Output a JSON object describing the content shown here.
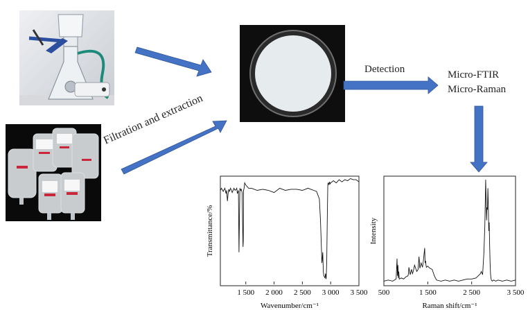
{
  "flow": {
    "filtration_label": "Filtration and extraction",
    "detection_label": "Detection",
    "method_1": "Micro-FTIR",
    "method_2": "Micro-Raman"
  },
  "colors": {
    "arrow": "#4472c4",
    "arrow_edge": "#2f5597",
    "filter_dish": "#e8edf0",
    "filter_bg": "#111111",
    "spectrum_line": "#111111"
  },
  "icons": {
    "filtration_apparatus": "vacuum-filtration-flask-photo",
    "infusion_bags": "iv-infusion-bags-photo",
    "filter_membrane": "filter-membrane-photo"
  },
  "chart_data": [
    {
      "type": "line",
      "title": "",
      "xlabel": "Wavenumber/cm⁻¹",
      "ylabel": "Transmittance/%",
      "xlim": [
        1050,
        3500
      ],
      "xticks": [
        1500,
        2000,
        2500,
        3000,
        3500
      ],
      "xtick_labels": [
        "1 500",
        "2 000",
        "2 500",
        "3 000",
        "3 500"
      ],
      "extra_tick_labels": [
        "1 500"
      ],
      "y_normalized_range": [
        0,
        1
      ],
      "series": [
        {
          "x": [
            1050,
            1070,
            1100,
            1130,
            1150,
            1160,
            1175,
            1190,
            1200,
            1210,
            1230,
            1260,
            1290,
            1310,
            1330,
            1340,
            1350,
            1370,
            1380,
            1395,
            1410,
            1420,
            1435,
            1450,
            1455,
            1460,
            1470,
            1480,
            1500,
            1550,
            1600,
            1700,
            1800,
            1900,
            2000,
            2100,
            2200,
            2300,
            2400,
            2500,
            2600,
            2700,
            2750,
            2800,
            2820,
            2840,
            2845,
            2850,
            2860,
            2870,
            2880,
            2900,
            2910,
            2920,
            2930,
            2940,
            2950,
            2960,
            2970,
            2980,
            2990,
            3000,
            3050,
            3100,
            3150,
            3200,
            3250,
            3300,
            3350,
            3400,
            3450,
            3500
          ],
          "y": [
            0.88,
            0.9,
            0.87,
            0.9,
            0.85,
            0.88,
            0.78,
            0.86,
            0.89,
            0.87,
            0.9,
            0.86,
            0.9,
            0.88,
            0.89,
            0.9,
            0.85,
            0.88,
            0.3,
            0.9,
            0.88,
            0.89,
            0.86,
            0.35,
            0.4,
            0.88,
            0.9,
            0.95,
            0.93,
            0.9,
            0.9,
            0.88,
            0.89,
            0.88,
            0.86,
            0.9,
            0.88,
            0.89,
            0.89,
            0.88,
            0.9,
            0.88,
            0.87,
            0.8,
            0.6,
            0.3,
            0.2,
            0.22,
            0.3,
            0.12,
            0.08,
            0.06,
            0.1,
            0.05,
            0.2,
            0.6,
            0.94,
            0.95,
            0.93,
            0.96,
            0.94,
            0.95,
            0.97,
            0.95,
            0.98,
            0.96,
            0.98,
            0.97,
            0.99,
            0.98,
            0.98,
            0.96
          ]
        }
      ]
    },
    {
      "type": "line",
      "title": "",
      "xlabel": "Raman shift/cm⁻¹",
      "ylabel": "Intensity",
      "xlim": [
        500,
        3500
      ],
      "xticks": [
        500,
        1500,
        2500,
        3500
      ],
      "xtick_labels": [
        "500",
        "1 500",
        "2 500",
        "3 500"
      ],
      "y_normalized_range": [
        0,
        1
      ],
      "series": [
        {
          "x": [
            500,
            600,
            700,
            780,
            800,
            810,
            820,
            830,
            840,
            850,
            900,
            950,
            1000,
            1050,
            1060,
            1070,
            1100,
            1130,
            1150,
            1170,
            1200,
            1250,
            1280,
            1300,
            1320,
            1350,
            1380,
            1400,
            1430,
            1440,
            1450,
            1460,
            1470,
            1500,
            1550,
            1600,
            1650,
            1700,
            1800,
            1900,
            2000,
            2100,
            2200,
            2300,
            2400,
            2500,
            2600,
            2650,
            2700,
            2720,
            2750,
            2780,
            2800,
            2820,
            2840,
            2850,
            2860,
            2870,
            2880,
            2890,
            2900,
            2910,
            2920,
            2930,
            2940,
            2950,
            2970,
            3000,
            3050,
            3100,
            3200,
            3300,
            3400,
            3500
          ],
          "y": [
            0.03,
            0.04,
            0.03,
            0.05,
            0.24,
            0.08,
            0.18,
            0.06,
            0.12,
            0.05,
            0.06,
            0.05,
            0.07,
            0.08,
            0.1,
            0.16,
            0.09,
            0.14,
            0.1,
            0.12,
            0.18,
            0.12,
            0.14,
            0.26,
            0.15,
            0.2,
            0.16,
            0.22,
            0.34,
            0.2,
            0.22,
            0.18,
            0.16,
            0.17,
            0.15,
            0.14,
            0.08,
            0.04,
            0.03,
            0.04,
            0.03,
            0.04,
            0.03,
            0.04,
            0.05,
            0.05,
            0.06,
            0.08,
            0.1,
            0.12,
            0.09,
            0.3,
            0.55,
            0.98,
            0.6,
            0.72,
            0.7,
            0.9,
            0.75,
            0.5,
            0.58,
            0.38,
            0.2,
            0.1,
            0.06,
            0.04,
            0.03,
            0.04,
            0.03,
            0.04,
            0.03,
            0.04,
            0.03,
            0.04
          ]
        }
      ]
    }
  ]
}
